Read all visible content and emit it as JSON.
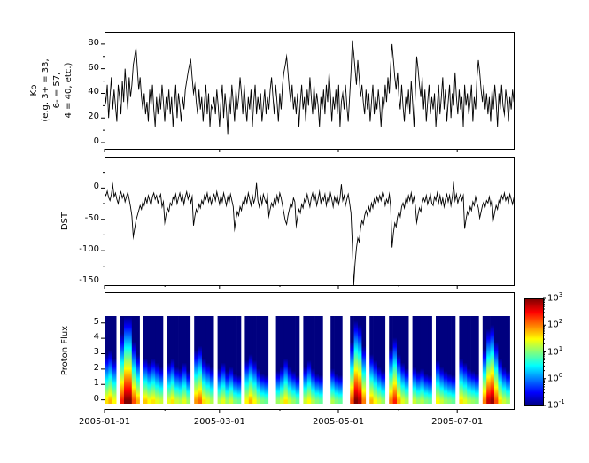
{
  "colors": {
    "line": "#000000",
    "background": "#ffffff"
  },
  "x_axis": {
    "range_days": [
      0,
      210
    ],
    "tick_days": [
      0,
      59,
      120,
      181
    ],
    "tick_labels": [
      "2005-01-01",
      "2005-03-01",
      "2005-05-01",
      "2005-07-01"
    ],
    "minor_tick_days": [
      31,
      90,
      151
    ]
  },
  "chart_data": [
    {
      "type": "line",
      "name": "Kp",
      "ylabel_lines": [
        "Kp",
        "(e.g. 3+ = 33,",
        "6- = 57,",
        "4 = 40, etc.)"
      ],
      "ylim": [
        -5,
        90
      ],
      "ytick_values": [
        0,
        20,
        40,
        60,
        80
      ],
      "ytick_labels": [
        "0",
        "20",
        "40",
        "60",
        "80"
      ],
      "yminor_values": [
        10,
        30,
        50,
        70
      ],
      "x_step_days": 0.7027,
      "values": [
        40,
        33,
        47,
        20,
        37,
        53,
        27,
        43,
        30,
        17,
        47,
        37,
        23,
        50,
        33,
        60,
        43,
        27,
        53,
        37,
        47,
        63,
        70,
        77,
        60,
        43,
        53,
        37,
        27,
        40,
        23,
        33,
        17,
        43,
        30,
        47,
        27,
        13,
        37,
        23,
        40,
        27,
        47,
        33,
        17,
        37,
        27,
        43,
        23,
        37,
        13,
        30,
        47,
        20,
        40,
        30,
        17,
        37,
        27,
        43,
        50,
        57,
        63,
        67,
        53,
        40,
        47,
        33,
        23,
        43,
        27,
        37,
        17,
        33,
        47,
        23,
        40,
        13,
        30,
        27,
        37,
        23,
        43,
        30,
        13,
        33,
        47,
        20,
        40,
        27,
        7,
        37,
        23,
        47,
        33,
        17,
        43,
        27,
        37,
        53,
        40,
        23,
        47,
        30,
        17,
        37,
        27,
        43,
        13,
        33,
        47,
        23,
        37,
        27,
        40,
        17,
        30,
        43,
        23,
        37,
        27,
        43,
        53,
        37,
        23,
        47,
        33,
        17,
        40,
        27,
        47,
        57,
        63,
        70,
        57,
        43,
        33,
        47,
        27,
        37,
        23,
        40,
        13,
        33,
        47,
        27,
        37,
        17,
        43,
        30,
        53,
        37,
        23,
        47,
        27,
        40,
        30,
        13,
        37,
        27,
        43,
        23,
        47,
        33,
        57,
        40,
        17,
        37,
        27,
        43,
        23,
        47,
        13,
        33,
        40,
        27,
        47,
        30,
        17,
        37,
        57,
        83,
        73,
        60,
        47,
        67,
        53,
        37,
        47,
        33,
        23,
        43,
        27,
        40,
        17,
        33,
        47,
        23,
        37,
        27,
        43,
        30,
        13,
        37,
        27,
        47,
        33,
        53,
        40,
        63,
        80,
        67,
        53,
        43,
        57,
        37,
        27,
        47,
        30,
        17,
        37,
        27,
        43,
        23,
        50,
        33,
        13,
        40,
        70,
        60,
        47,
        37,
        53,
        27,
        43,
        17,
        33,
        47,
        23,
        37,
        27,
        40,
        13,
        30,
        47,
        23,
        37,
        53,
        27,
        43,
        17,
        33,
        47,
        20,
        40,
        30,
        57,
        37,
        23,
        43,
        27,
        37,
        13,
        47,
        30,
        40,
        23,
        33,
        47,
        17,
        37,
        27,
        53,
        67,
        57,
        43,
        33,
        47,
        27,
        40,
        23,
        37,
        17,
        43,
        27,
        47,
        33,
        13,
        40,
        27,
        47,
        30,
        23,
        43,
        33,
        17,
        37,
        27,
        43,
        33
      ]
    },
    {
      "type": "line",
      "name": "DST",
      "ylabel": "DST",
      "ylim": [
        -155,
        50
      ],
      "ytick_values": [
        0,
        -50,
        -100,
        -150
      ],
      "ytick_labels": [
        "0",
        "-50",
        "-100",
        "-150"
      ],
      "yminor_values": [
        25,
        -25,
        -75,
        -125
      ],
      "x_step_days": 0.7027,
      "values": [
        -8,
        -12,
        -5,
        -15,
        -20,
        -10,
        5,
        -14,
        -8,
        -18,
        -25,
        -12,
        -6,
        -16,
        -10,
        -22,
        -14,
        -7,
        -18,
        -30,
        -45,
        -78,
        -65,
        -52,
        -44,
        -36,
        -28,
        -34,
        -22,
        -28,
        -16,
        -24,
        -12,
        -20,
        -28,
        -14,
        -8,
        -18,
        -12,
        -24,
        -16,
        -10,
        -30,
        -22,
        -55,
        -42,
        -32,
        -38,
        -24,
        -28,
        -15,
        -20,
        -10,
        -25,
        -16,
        -8,
        -20,
        -12,
        -26,
        -14,
        -6,
        -18,
        -10,
        -24,
        -14,
        -60,
        -45,
        -34,
        -40,
        -26,
        -32,
        -20,
        -26,
        -12,
        -18,
        -8,
        -22,
        -14,
        -26,
        -16,
        -10,
        -20,
        -6,
        -16,
        -26,
        -12,
        -22,
        -8,
        -18,
        -28,
        -14,
        -24,
        -10,
        -20,
        -30,
        -65,
        -50,
        -38,
        -44,
        -30,
        -36,
        -22,
        -28,
        -14,
        -24,
        -8,
        -18,
        -28,
        -12,
        -24,
        -16,
        8,
        -20,
        -30,
        -14,
        -26,
        -10,
        -18,
        -24,
        -12,
        -45,
        -34,
        -24,
        -30,
        -18,
        -26,
        -12,
        -22,
        -8,
        -16,
        -28,
        -40,
        -52,
        -58,
        -44,
        -34,
        -24,
        -30,
        -16,
        -22,
        -60,
        -46,
        -34,
        -40,
        -26,
        -32,
        -18,
        -24,
        -10,
        -20,
        -30,
        -16,
        -8,
        -22,
        -12,
        -28,
        -18,
        -6,
        -24,
        -14,
        -20,
        -10,
        -28,
        -16,
        -24,
        -8,
        -18,
        -30,
        -14,
        -22,
        -12,
        -26,
        -16,
        6,
        -20,
        -12,
        -28,
        -18,
        -10,
        -24,
        -40,
        -90,
        -155,
        -120,
        -96,
        -80,
        -86,
        -64,
        -52,
        -58,
        -44,
        -36,
        -44,
        -30,
        -38,
        -24,
        -32,
        -18,
        -26,
        -14,
        -22,
        -12,
        -20,
        -8,
        -16,
        -28,
        -18,
        -24,
        -10,
        -30,
        -95,
        -72,
        -56,
        -62,
        -46,
        -38,
        -46,
        -30,
        -24,
        -32,
        -18,
        -26,
        -12,
        -20,
        -8,
        -24,
        -14,
        -28,
        -55,
        -42,
        -32,
        -38,
        -24,
        -16,
        -22,
        -12,
        -26,
        -18,
        -10,
        -24,
        -28,
        -14,
        -20,
        -8,
        -24,
        -12,
        -26,
        -16,
        -30,
        -18,
        -10,
        -22,
        -12,
        -28,
        -14,
        5,
        -20,
        -10,
        -24,
        -16,
        -10,
        -20,
        -12,
        -65,
        -50,
        -38,
        -44,
        -30,
        -36,
        -22,
        -28,
        -14,
        -24,
        -32,
        -48,
        -38,
        -28,
        -22,
        -30,
        -20,
        -24,
        -14,
        -28,
        -18,
        -50,
        -38,
        -28,
        -34,
        -20,
        -26,
        -12,
        -18,
        -8,
        -20,
        -14,
        -24,
        -10,
        -18,
        -26,
        -15
      ]
    },
    {
      "type": "heatmap",
      "name": "Proton Flux",
      "ylabel": "Proton Flux",
      "ylim_display": [
        -0.6,
        7.0
      ],
      "strip_range": [
        -0.25,
        5.45
      ],
      "ytick_values": [
        0,
        1,
        2,
        3,
        4,
        5
      ],
      "ytick_labels": [
        "0",
        "1",
        "2",
        "3",
        "4",
        "5"
      ],
      "days_per_column": 2,
      "colormap": "jet",
      "value_range_log10": [
        -1,
        3
      ],
      "bottom_log10": [
        1.6,
        1.8,
        1.5,
        null,
        2.4,
        3.0,
        3.0,
        2.2,
        1.8,
        null,
        1.7,
        1.5,
        1.6,
        1.4,
        1.3,
        null,
        1.4,
        1.6,
        1.3,
        1.2,
        1.4,
        1.1,
        null,
        1.9,
        2.1,
        1.6,
        1.4,
        1.2,
        null,
        1.2,
        1.4,
        1.1,
        1.3,
        1.0,
        0.9,
        null,
        1.5,
        1.8,
        1.5,
        1.2,
        1.0,
        0.9,
        null,
        null,
        1.1,
        1.3,
        1.6,
        1.3,
        1.1,
        0.9,
        null,
        1.3,
        1.5,
        1.2,
        1.0,
        0.9,
        null,
        null,
        1.2,
        1.0,
        0.9,
        null,
        null,
        2.2,
        3.0,
        2.8,
        2.0,
        null,
        1.8,
        1.5,
        1.3,
        1.1,
        null,
        2.0,
        2.4,
        1.8,
        1.4,
        1.2,
        null,
        1.3,
        1.1,
        1.2,
        1.0,
        0.9,
        null,
        1.5,
        1.3,
        1.1,
        1.0,
        0.9,
        null,
        1.6,
        1.4,
        1.2,
        1.1,
        1.0,
        null,
        2.0,
        2.7,
        2.9,
        2.2,
        1.6,
        1.3,
        1.1
      ],
      "height_frac": [
        0.55,
        0.6,
        0.5,
        null,
        0.8,
        1.0,
        1.0,
        0.7,
        0.55,
        null,
        0.5,
        0.45,
        0.5,
        0.45,
        0.4,
        null,
        0.45,
        0.5,
        0.4,
        0.38,
        0.45,
        0.35,
        null,
        0.6,
        0.65,
        0.5,
        0.45,
        0.4,
        null,
        0.38,
        0.45,
        0.35,
        0.4,
        0.32,
        0.3,
        null,
        0.48,
        0.55,
        0.48,
        0.38,
        0.32,
        0.3,
        null,
        null,
        0.35,
        0.4,
        0.5,
        0.4,
        0.35,
        0.3,
        null,
        0.4,
        0.48,
        0.38,
        0.32,
        0.3,
        null,
        null,
        0.38,
        0.32,
        0.3,
        null,
        null,
        0.7,
        0.95,
        0.9,
        0.65,
        null,
        0.55,
        0.48,
        0.4,
        0.35,
        null,
        0.62,
        0.75,
        0.55,
        0.45,
        0.38,
        null,
        0.4,
        0.35,
        0.38,
        0.32,
        0.3,
        null,
        0.48,
        0.4,
        0.35,
        0.32,
        0.3,
        null,
        0.5,
        0.45,
        0.38,
        0.35,
        0.32,
        null,
        0.62,
        0.85,
        0.9,
        0.7,
        0.5,
        0.4,
        0.35
      ],
      "colorbar": {
        "base": "10",
        "tick_exponents": [
          3,
          2,
          1,
          0,
          -1
        ]
      }
    }
  ]
}
